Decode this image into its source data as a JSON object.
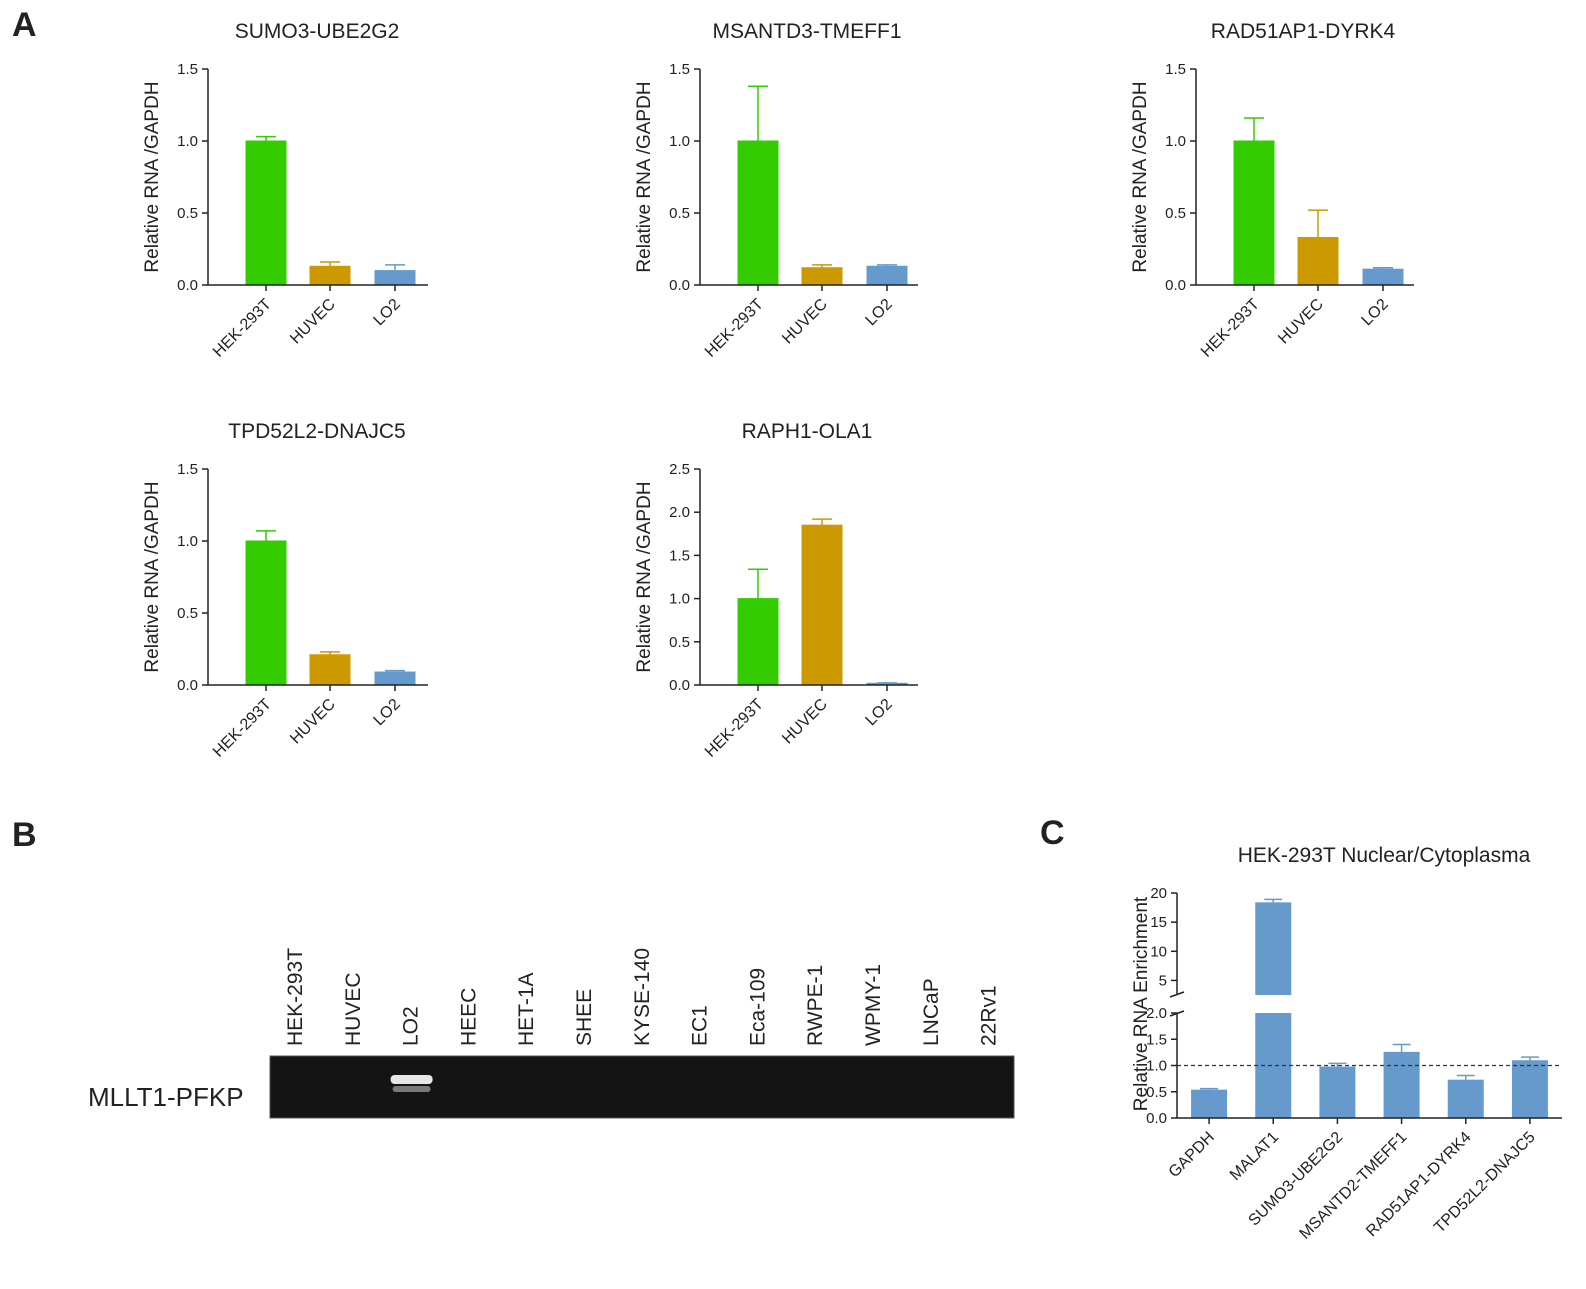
{
  "panels": {
    "A": "A",
    "B": "B",
    "C": "C"
  },
  "colors": {
    "HEK-293T": "#33cc00",
    "HUVEC": "#cc9900",
    "LO2": "#6699cc",
    "C_bar": "#6699cc"
  },
  "chart_data": [
    {
      "type": "bar",
      "title": "SUMO3-UBE2G2",
      "ylabel": "Relative RNA /GAPDH",
      "xlabel": "",
      "categories": [
        "HEK-293T",
        "HUVEC",
        "LO2"
      ],
      "values": [
        1.0,
        0.13,
        0.1
      ],
      "errors": [
        0.03,
        0.03,
        0.04
      ],
      "ylim": [
        0,
        1.5
      ],
      "yticks": [
        0.0,
        0.5,
        1.0,
        1.5
      ],
      "ytick_labels": [
        "0.0",
        "0.5",
        "1.0",
        "1.5"
      ]
    },
    {
      "type": "bar",
      "title": "MSANTD3-TMEFF1",
      "ylabel": "Relative RNA /GAPDH",
      "xlabel": "",
      "categories": [
        "HEK-293T",
        "HUVEC",
        "LO2"
      ],
      "values": [
        1.0,
        0.12,
        0.13
      ],
      "errors": [
        0.38,
        0.02,
        0.01
      ],
      "ylim": [
        0,
        1.5
      ],
      "yticks": [
        0.0,
        0.5,
        1.0,
        1.5
      ],
      "ytick_labels": [
        "0.0",
        "0.5",
        "1.0",
        "1.5"
      ]
    },
    {
      "type": "bar",
      "title": "RAD51AP1-DYRK4",
      "ylabel": "Relative RNA /GAPDH",
      "xlabel": "",
      "categories": [
        "HEK-293T",
        "HUVEC",
        "LO2"
      ],
      "values": [
        1.0,
        0.33,
        0.11
      ],
      "errors": [
        0.16,
        0.19,
        0.01
      ],
      "ylim": [
        0,
        1.5
      ],
      "yticks": [
        0.0,
        0.5,
        1.0,
        1.5
      ],
      "ytick_labels": [
        "0.0",
        "0.5",
        "1.0",
        "1.5"
      ]
    },
    {
      "type": "bar",
      "title": "TPD52L2-DNAJC5",
      "ylabel": "Relative RNA /GAPDH",
      "xlabel": "",
      "categories": [
        "HEK-293T",
        "HUVEC",
        "LO2"
      ],
      "values": [
        1.0,
        0.21,
        0.09
      ],
      "errors": [
        0.07,
        0.02,
        0.01
      ],
      "ylim": [
        0,
        1.5
      ],
      "yticks": [
        0.0,
        0.5,
        1.0,
        1.5
      ],
      "ytick_labels": [
        "0.0",
        "0.5",
        "1.0",
        "1.5"
      ]
    },
    {
      "type": "bar",
      "title": "RAPH1-OLA1",
      "ylabel": "Relative RNA /GAPDH",
      "xlabel": "",
      "categories": [
        "HEK-293T",
        "HUVEC",
        "LO2"
      ],
      "values": [
        1.0,
        1.85,
        0.02
      ],
      "errors": [
        0.34,
        0.07,
        0.005
      ],
      "ylim": [
        0,
        2.5
      ],
      "yticks": [
        0.0,
        0.5,
        1.0,
        1.5,
        2.0,
        2.5
      ],
      "ytick_labels": [
        "0.0",
        "0.5",
        "1.0",
        "1.5",
        "2.0",
        "2.5"
      ]
    },
    {
      "type": "bar",
      "title": "HEK-293T Nuclear/Cytoplasma",
      "ylabel": "Relative RNA Enrichment",
      "xlabel": "",
      "categories": [
        "GAPDH",
        "MALAT1",
        "SUMO3-UBE2G2",
        "MSANTD2-TMEFF1",
        "RAD51AP1-DYRK4",
        "TPD52L2-DNAJC5"
      ],
      "values": [
        0.54,
        18.4,
        0.98,
        1.26,
        0.73,
        1.1
      ],
      "errors": [
        0.02,
        0.5,
        0.06,
        0.14,
        0.08,
        0.06
      ],
      "broken_axis": {
        "lower_ylim": [
          0,
          2.0
        ],
        "lower_ticks": [
          0.0,
          0.5,
          1.0,
          1.5,
          2.0
        ],
        "lower_tick_labels": [
          "0.0",
          "0.5",
          "1.0",
          "1.5",
          "2.0"
        ],
        "upper_ylim": [
          2.5,
          20
        ],
        "upper_ticks": [
          5,
          10,
          15,
          20
        ],
        "upper_tick_labels": [
          "5",
          "10",
          "15",
          "20"
        ]
      },
      "reference_line": 1.0
    }
  ],
  "gel": {
    "row_label": "MLLT1-PFKP",
    "lanes": [
      "HEK-293T",
      "HUVEC",
      "LO2",
      "HEEC",
      "HET-1A",
      "SHEE",
      "KYSE-140",
      "EC1",
      "Eca-109",
      "RWPE-1",
      "WPMY-1",
      "LNCaP",
      "22Rv1"
    ],
    "band_lane": "LO2"
  }
}
